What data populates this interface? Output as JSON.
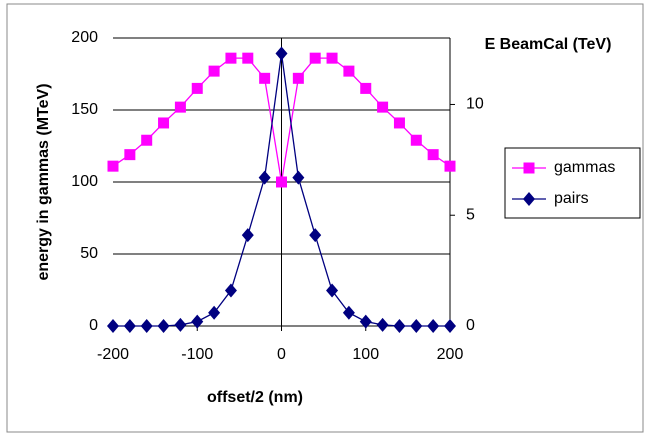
{
  "chart_data": {
    "type": "line",
    "x_label": "offset/2 (nm)",
    "y_label": "energy in gammas (MTeV)",
    "y2_label": "E BeamCal (TeV)",
    "x": [
      -200,
      -180,
      -160,
      -140,
      -120,
      -100,
      -80,
      -60,
      -40,
      -20,
      0,
      20,
      40,
      60,
      80,
      100,
      120,
      140,
      160,
      180,
      200
    ],
    "series": [
      {
        "name": "gammas",
        "color": "#ff00ff",
        "marker": "square",
        "values": [
          111,
          119,
          129,
          141,
          152,
          165,
          177,
          186,
          186,
          172,
          100,
          172,
          186,
          186,
          177,
          165,
          152,
          141,
          129,
          119,
          111
        ]
      },
      {
        "name": "pairs",
        "color": "#000080",
        "marker": "diamond",
        "axis": "y2",
        "values": [
          0,
          0,
          0,
          0,
          0.05,
          0.2,
          0.6,
          1.6,
          4.1,
          6.7,
          12.3,
          6.7,
          4.1,
          1.6,
          0.6,
          0.2,
          0.05,
          0,
          0,
          0,
          0
        ]
      }
    ],
    "xlim": [
      -200,
      200
    ],
    "xticks": [
      -200,
      -100,
      0,
      100,
      200
    ],
    "ylim": [
      0,
      200
    ],
    "yticks": [
      0,
      50,
      100,
      150,
      200
    ],
    "y2lim": [
      0,
      13
    ],
    "y2ticks": [
      0,
      5,
      10
    ],
    "grid": true,
    "legend": "right"
  }
}
